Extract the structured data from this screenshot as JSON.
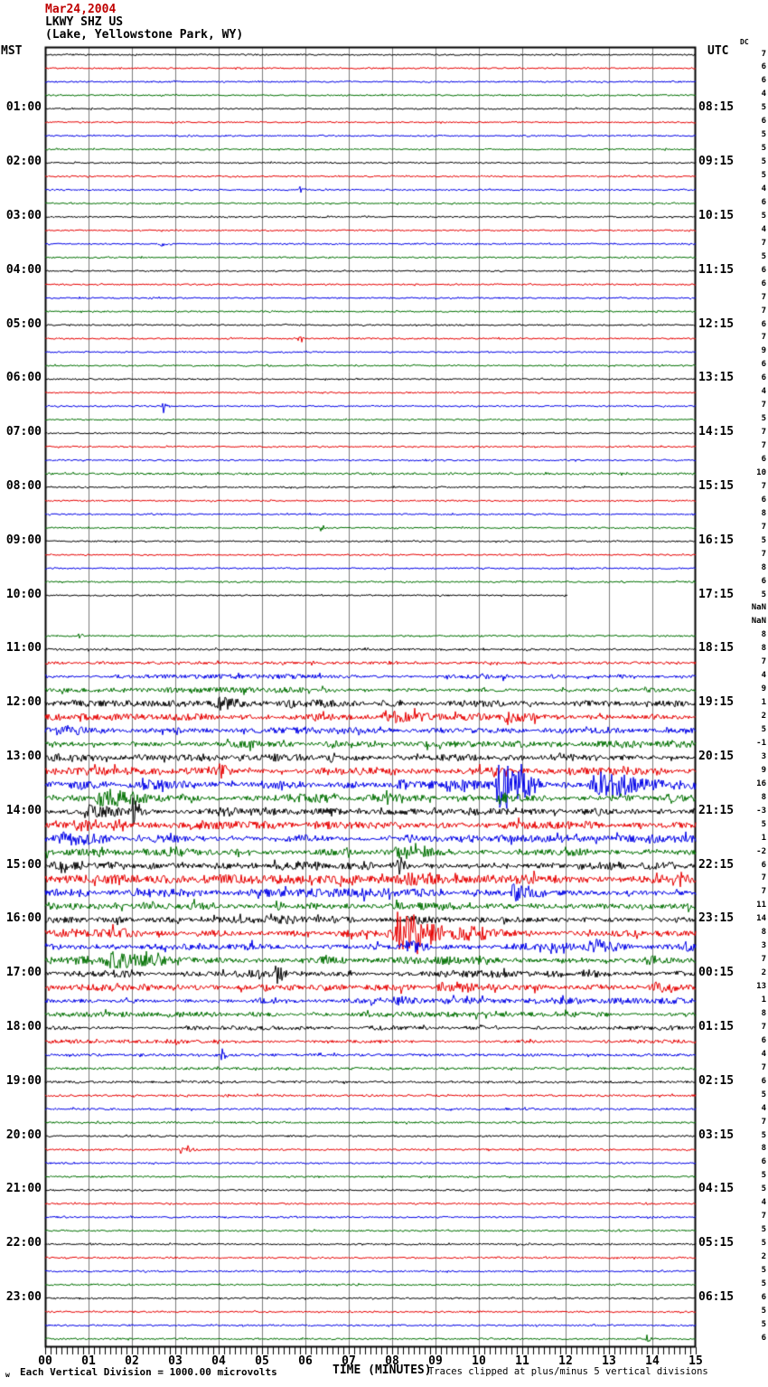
{
  "title": {
    "date": "Mar24,2004",
    "station": "LKWY SHZ US",
    "location": "(Lake, Yellowstone Park, WY)"
  },
  "axes": {
    "left_label": "MST",
    "right_label": "UTC",
    "dc_label": "DC",
    "x_axis_label": "TIME (MINUTES)"
  },
  "footer": {
    "corner_glyph": "w",
    "scale_note": "Each Vertical Division = 1000.00 microvolts",
    "clip_note": "Traces clipped at plus/minus 5 vertical divisions"
  },
  "colors": {
    "trace_cycle": [
      "#000000",
      "#e80000",
      "#0000e8",
      "#007000"
    ],
    "grid": "#7d7d7d",
    "border": "#000000",
    "title_date": "#c00000",
    "text": "#000000"
  },
  "chart_data": {
    "type": "line",
    "kind": "helicorder-seismogram",
    "minutes_per_line": 15,
    "lines_per_hour": 4,
    "row_count": 96,
    "start_time_mst": "00:00",
    "x_range_minutes": [
      0,
      15
    ],
    "x_tick_labels": [
      "00",
      "01",
      "02",
      "03",
      "04",
      "05",
      "06",
      "07",
      "08",
      "09",
      "10",
      "11",
      "12",
      "13",
      "14",
      "15"
    ],
    "minor_ticks_per_minute": 8,
    "clip_divisions": 5,
    "trace_color_cycle": [
      "black",
      "red",
      "blue",
      "green"
    ],
    "left_hour_labels": [
      "01:00",
      "02:00",
      "03:00",
      "04:00",
      "05:00",
      "06:00",
      "07:00",
      "08:00",
      "09:00",
      "10:00",
      "11:00",
      "12:00",
      "13:00",
      "14:00",
      "15:00",
      "16:00",
      "17:00",
      "18:00",
      "19:00",
      "20:00",
      "21:00",
      "22:00",
      "23:00"
    ],
    "right_utc_labels": [
      "08:15",
      "09:15",
      "10:15",
      "11:15",
      "12:15",
      "13:15",
      "14:15",
      "15:15",
      "16:15",
      "17:15",
      "18:15",
      "19:15",
      "20:15",
      "21:15",
      "22:15",
      "23:15",
      "00:15",
      "01:15",
      "02:15",
      "03:15",
      "04:15",
      "05:15",
      "06:15"
    ],
    "label_row_step": 4,
    "right_edge_values": [
      "7",
      "6",
      "6",
      "4",
      "5",
      "6",
      "5",
      "5",
      "5",
      "5",
      "4",
      "6",
      "5",
      "4",
      "7",
      "5",
      "6",
      "6",
      "7",
      "7",
      "6",
      "7",
      "9",
      "6",
      "6",
      "4",
      "7",
      "5",
      "7",
      "7",
      "6",
      "10",
      "7",
      "6",
      "8",
      "7",
      "5",
      "7",
      "8",
      "6",
      "5",
      "NaN",
      "NaN",
      "8",
      "8",
      "7",
      "4",
      "9",
      "1",
      "2",
      "5",
      "-1",
      "3",
      "9",
      "16",
      "8",
      "-3",
      "5",
      "1",
      "-2",
      "6",
      "7",
      "7",
      "11",
      "14",
      "8",
      "3",
      "7",
      "2",
      "13",
      "1",
      "8",
      "7",
      "6",
      "4",
      "7",
      "6",
      "5",
      "4",
      "7",
      "5",
      "8",
      "6",
      "5",
      "5",
      "4",
      "7",
      "5",
      "5",
      "2",
      "5",
      "5",
      "6",
      "5",
      "5",
      "6"
    ],
    "row_noise_amplitude": [
      0.8,
      0.8,
      0.8,
      0.8,
      0.8,
      0.8,
      0.8,
      0.8,
      0.8,
      0.8,
      0.8,
      0.8,
      0.8,
      0.8,
      0.8,
      0.8,
      0.8,
      0.8,
      0.8,
      0.8,
      0.8,
      0.8,
      0.8,
      0.8,
      0.8,
      0.8,
      0.8,
      0.8,
      0.8,
      0.8,
      0.8,
      1.1,
      0.8,
      0.8,
      0.8,
      0.8,
      0.8,
      0.8,
      0.8,
      0.8,
      0.8,
      0,
      0,
      0.9,
      1.1,
      1.4,
      1.9,
      2.1,
      2.6,
      2.8,
      3.0,
      3.0,
      3.2,
      3.2,
      3.8,
      3.6,
      3.2,
      3.0,
      3.2,
      3.2,
      3.5,
      3.6,
      3.5,
      3.3,
      3.4,
      3.6,
      3.3,
      3.3,
      2.9,
      2.7,
      2.5,
      2.2,
      1.7,
      1.5,
      1.4,
      1.3,
      1.2,
      1.1,
      1.1,
      1.0,
      0.9,
      0.9,
      0.9,
      0.9,
      0.9,
      0.9,
      0.9,
      0.9,
      0.9,
      0.9,
      0.9,
      0.9,
      0.9,
      0.9,
      0.9,
      0.9
    ],
    "missing_rows": [
      41,
      42
    ],
    "partial_rows": [
      {
        "row": 40,
        "end_minute": 12.05
      }
    ],
    "events": [
      {
        "row": 10,
        "t0": 5.85,
        "t1": 6.05,
        "amp": 5
      },
      {
        "row": 14,
        "t0": 2.6,
        "t1": 2.8,
        "amp": 5
      },
      {
        "row": 21,
        "t0": 5.8,
        "t1": 6.0,
        "amp": 4
      },
      {
        "row": 26,
        "t0": 2.7,
        "t1": 2.9,
        "amp": 8
      },
      {
        "row": 35,
        "t0": 6.3,
        "t1": 6.5,
        "amp": 5
      },
      {
        "row": 43,
        "t0": 0.75,
        "t1": 0.95,
        "amp": 4
      },
      {
        "row": 48,
        "t0": 3.9,
        "t1": 5.2,
        "amp": 5
      },
      {
        "row": 48,
        "t0": 5.5,
        "t1": 7.2,
        "amp": 4
      },
      {
        "row": 49,
        "t0": 7.7,
        "t1": 9.0,
        "amp": 4
      },
      {
        "row": 49,
        "t0": 10.5,
        "t1": 12.2,
        "amp": 4
      },
      {
        "row": 50,
        "t0": 0.2,
        "t1": 1.2,
        "amp": 3
      },
      {
        "row": 52,
        "t0": 6.5,
        "t1": 7.1,
        "amp": 4
      },
      {
        "row": 52,
        "t0": 11.5,
        "t1": 13.0,
        "amp": 4
      },
      {
        "row": 53,
        "t0": 4.0,
        "t1": 4.3,
        "amp": 6
      },
      {
        "row": 54,
        "t0": 2.2,
        "t1": 3.5,
        "amp": 5
      },
      {
        "row": 54,
        "t0": 10.35,
        "t1": 11.6,
        "amp": 33
      },
      {
        "row": 54,
        "t0": 12.55,
        "t1": 14.45,
        "amp": 13
      },
      {
        "row": 55,
        "t0": 1.1,
        "t1": 2.5,
        "amp": 7
      },
      {
        "row": 55,
        "t0": 10.4,
        "t1": 11.3,
        "amp": 5
      },
      {
        "row": 56,
        "t0": 0.8,
        "t1": 2.6,
        "amp": 7
      },
      {
        "row": 56,
        "t0": 2.0,
        "t1": 2.25,
        "amp": 12
      },
      {
        "row": 57,
        "t0": 0.6,
        "t1": 1.5,
        "amp": 4
      },
      {
        "row": 58,
        "t0": 0.3,
        "t1": 2.0,
        "amp": 5
      },
      {
        "row": 58,
        "t0": 8.3,
        "t1": 8.6,
        "amp": 5
      },
      {
        "row": 59,
        "t0": 8.0,
        "t1": 9.6,
        "amp": 7
      },
      {
        "row": 60,
        "t0": 8.1,
        "t1": 8.5,
        "amp": 9
      },
      {
        "row": 61,
        "t0": 8.0,
        "t1": 10.2,
        "amp": 6
      },
      {
        "row": 61,
        "t0": 14.4,
        "t1": 14.8,
        "amp": 10
      },
      {
        "row": 62,
        "t0": 10.7,
        "t1": 11.7,
        "amp": 7
      },
      {
        "row": 63,
        "t0": 5.3,
        "t1": 5.6,
        "amp": 6
      },
      {
        "row": 64,
        "t0": 8.3,
        "t1": 9.1,
        "amp": 5
      },
      {
        "row": 65,
        "t0": 8.05,
        "t1": 9.35,
        "amp": 30
      },
      {
        "row": 65,
        "t0": 9.35,
        "t1": 10.8,
        "amp": 8
      },
      {
        "row": 66,
        "t0": 8.2,
        "t1": 9.1,
        "amp": 5
      },
      {
        "row": 66,
        "t0": 12.5,
        "t1": 13.7,
        "amp": 8
      },
      {
        "row": 66,
        "t0": 14.75,
        "t1": 15.0,
        "amp": 6
      },
      {
        "row": 67,
        "t0": 1.3,
        "t1": 3.7,
        "amp": 7
      },
      {
        "row": 67,
        "t0": 13.8,
        "t1": 14.6,
        "amp": 5
      },
      {
        "row": 68,
        "t0": 5.3,
        "t1": 5.6,
        "amp": 13
      },
      {
        "row": 68,
        "t0": 4.3,
        "t1": 6.2,
        "amp": 3
      },
      {
        "row": 68,
        "t0": 12.3,
        "t1": 13.2,
        "amp": 4
      },
      {
        "row": 69,
        "t0": 9.0,
        "t1": 10.5,
        "amp": 4
      },
      {
        "row": 69,
        "t0": 13.9,
        "t1": 14.9,
        "amp": 6
      },
      {
        "row": 70,
        "t0": 8.0,
        "t1": 8.8,
        "amp": 4
      },
      {
        "row": 74,
        "t0": 4.05,
        "t1": 4.25,
        "amp": 7
      },
      {
        "row": 81,
        "t0": 3.1,
        "t1": 3.5,
        "amp": 6
      },
      {
        "row": 95,
        "t0": 13.85,
        "t1": 14.1,
        "amp": 4
      }
    ]
  }
}
